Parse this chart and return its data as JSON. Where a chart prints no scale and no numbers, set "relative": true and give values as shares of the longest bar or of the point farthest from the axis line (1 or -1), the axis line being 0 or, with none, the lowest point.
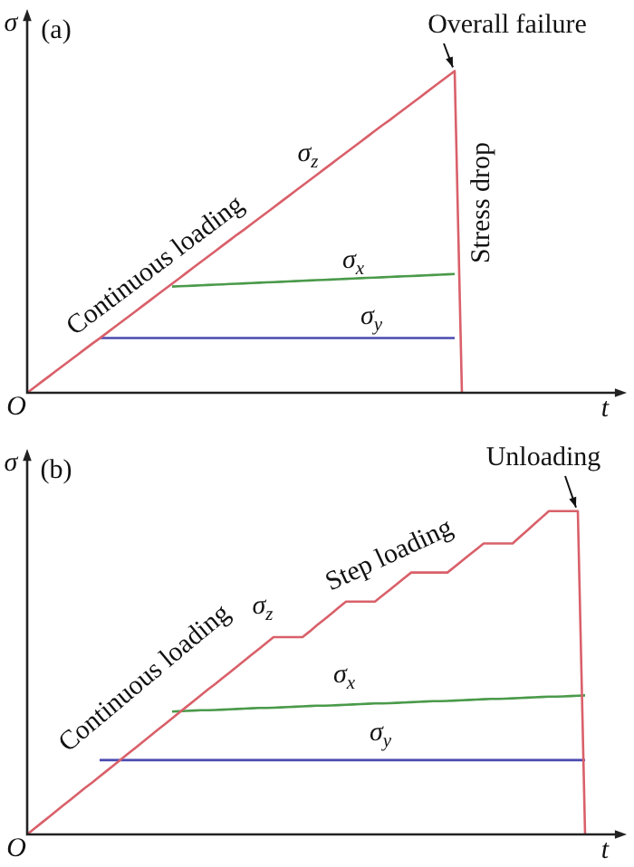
{
  "chart_data": [
    {
      "type": "line",
      "title": "(a)",
      "xlabel": "t",
      "ylabel": "σ",
      "relative": true,
      "legend": false,
      "marker": "none",
      "line_style": "solid",
      "categories": [
        null,
        null,
        null,
        null,
        null,
        null,
        null,
        null,
        null,
        null,
        null,
        null,
        null,
        null,
        null,
        null,
        null,
        null,
        null,
        null,
        null,
        null,
        null,
        null,
        null,
        null,
        null,
        null,
        null,
        null,
        null,
        null,
        null,
        null,
        null,
        null,
        null,
        null,
        null,
        null,
        null,
        null,
        null,
        null,
        null,
        null,
        null,
        null,
        null,
        null,
        null,
        null,
        null,
        null,
        null,
        null,
        null,
        null,
        null,
        null,
        null,
        null,
        null,
        null,
        null,
        null,
        null,
        null,
        null,
        null,
        null,
        null,
        null,
        null,
        null,
        null,
        null,
        null,
        null,
        null,
        null,
        null,
        null
      ],
      "annotations": [
        "O",
        "Continuous loading",
        "Overall failure",
        "Stress drop"
      ],
      "series": [
        {
          "name": "σ$_{z}$",
          "color": "#d9606a",
          "values": [
            0,
            0.017,
            0.034,
            0.051,
            0.068,
            0.085,
            0.102,
            0.119,
            0.136,
            0.153,
            0.169,
            0.186,
            0.203,
            0.22,
            0.237,
            0.254,
            0.271,
            0.288,
            0.305,
            0.322,
            0.339,
            0.356,
            0.373,
            0.39,
            0.407,
            0.424,
            0.441,
            0.458,
            0.475,
            0.492,
            0.508,
            0.525,
            0.542,
            0.559,
            0.576,
            0.593,
            0.61,
            0.627,
            0.644,
            0.661,
            0.678,
            0.695,
            0.712,
            0.729,
            0.746,
            0.763,
            0.78,
            0.797,
            0.814,
            0.831,
            0.847,
            0.864,
            0.881,
            0.898,
            0.915,
            0.932,
            0.949,
            0.966,
            0.983,
            1,
            0,
            null,
            null,
            null,
            null,
            null,
            null,
            null,
            null,
            null,
            null,
            null,
            null,
            null,
            null,
            null,
            null,
            null,
            null,
            null,
            null,
            null,
            null
          ]
        },
        {
          "name": "σ$_{x}$",
          "color": "#4a9a4a",
          "values": [
            null,
            null,
            null,
            null,
            null,
            null,
            null,
            null,
            null,
            null,
            null,
            null,
            null,
            null,
            null,
            null,
            null,
            null,
            null,
            null,
            0.33,
            0.331,
            0.332,
            0.333,
            0.334,
            0.335,
            0.336,
            0.337,
            0.338,
            0.339,
            0.34,
            0.341,
            0.342,
            0.343,
            0.344,
            0.345,
            0.346,
            0.347,
            0.348,
            0.349,
            0.35,
            0.351,
            0.352,
            0.353,
            0.354,
            0.355,
            0.356,
            0.357,
            0.358,
            0.359,
            0.36,
            0.361,
            0.362,
            0.363,
            0.364,
            0.365,
            0.366,
            0.367,
            0.368,
            0.369,
            null,
            null,
            null,
            null,
            null,
            null,
            null,
            null,
            null,
            null,
            null,
            null,
            null,
            null,
            null,
            null,
            null,
            null,
            null,
            null,
            null,
            null,
            null
          ]
        },
        {
          "name": "σ$_{y}$",
          "color": "#4a4ab0",
          "values": [
            null,
            null,
            null,
            null,
            null,
            null,
            null,
            null,
            null,
            null,
            0.17,
            0.17,
            0.17,
            0.17,
            0.17,
            0.17,
            0.17,
            0.17,
            0.17,
            0.17,
            0.17,
            0.17,
            0.17,
            0.17,
            0.17,
            0.17,
            0.17,
            0.17,
            0.17,
            0.17,
            0.17,
            0.17,
            0.17,
            0.17,
            0.17,
            0.17,
            0.17,
            0.17,
            0.17,
            0.17,
            0.17,
            0.17,
            0.17,
            0.17,
            0.17,
            0.17,
            0.17,
            0.17,
            0.17,
            0.17,
            0.17,
            0.17,
            0.17,
            0.17,
            0.17,
            0.17,
            0.17,
            0.17,
            0.17,
            0.17,
            null,
            null,
            null,
            null,
            null,
            null,
            null,
            null,
            null,
            null,
            null,
            null,
            null,
            null,
            null,
            null,
            null,
            null,
            null,
            null,
            null,
            null,
            null
          ]
        }
      ]
    },
    {
      "type": "line",
      "title": "(b)",
      "xlabel": "t",
      "ylabel": "σ",
      "relative": true,
      "legend": false,
      "marker": "none",
      "line_style": "solid",
      "categories": [
        null,
        null,
        null,
        null,
        null,
        null,
        null,
        null,
        null,
        null,
        null,
        null,
        null,
        null,
        null,
        null,
        null,
        null,
        null,
        null,
        null,
        null,
        null,
        null,
        null,
        null,
        null,
        null,
        null,
        null,
        null,
        null,
        null,
        null,
        null,
        null,
        null,
        null,
        null,
        null,
        null,
        null,
        null,
        null,
        null,
        null,
        null,
        null,
        null,
        null,
        null,
        null,
        null,
        null,
        null,
        null,
        null,
        null,
        null,
        null,
        null,
        null,
        null,
        null,
        null,
        null,
        null,
        null,
        null,
        null,
        null,
        null,
        null,
        null,
        null,
        null,
        null,
        null,
        null,
        null,
        null,
        null,
        null
      ],
      "annotations": [
        "O",
        "Continuous loading",
        "Step loading",
        "Unloading"
      ],
      "series": [
        {
          "name": "σ$_{z}$",
          "color": "#d9606a",
          "values": [
            0,
            0.018,
            0.036,
            0.054,
            0.072,
            0.09,
            0.108,
            0.126,
            0.144,
            0.161,
            0.179,
            0.197,
            0.215,
            0.233,
            0.251,
            0.269,
            0.287,
            0.305,
            0.323,
            0.341,
            0.359,
            0.377,
            0.395,
            0.413,
            0.431,
            0.449,
            0.466,
            0.484,
            0.502,
            0.52,
            0.538,
            0.556,
            0.574,
            0.592,
            0.61,
            0.61,
            0.61,
            0.61,
            0.61,
            0.628,
            0.647,
            0.665,
            0.683,
            0.702,
            0.72,
            0.72,
            0.72,
            0.72,
            0.72,
            0.738,
            0.756,
            0.774,
            0.792,
            0.81,
            0.81,
            0.81,
            0.81,
            0.81,
            0.81,
            0.828,
            0.846,
            0.864,
            0.882,
            0.9,
            0.9,
            0.9,
            0.9,
            0.9,
            0.92,
            0.94,
            0.96,
            0.98,
            1,
            1,
            1,
            1,
            1,
            0,
            null,
            null,
            null,
            null,
            null
          ]
        },
        {
          "name": "σ$_{x}$",
          "color": "#4a9a4a",
          "values": [
            null,
            null,
            null,
            null,
            null,
            null,
            null,
            null,
            null,
            null,
            null,
            null,
            null,
            null,
            null,
            null,
            null,
            null,
            null,
            null,
            0.38,
            0.381,
            0.382,
            0.383,
            0.384,
            0.384,
            0.385,
            0.386,
            0.387,
            0.388,
            0.389,
            0.39,
            0.391,
            0.391,
            0.392,
            0.393,
            0.394,
            0.395,
            0.396,
            0.397,
            0.398,
            0.398,
            0.399,
            0.4,
            0.401,
            0.402,
            0.403,
            0.404,
            0.405,
            0.405,
            0.406,
            0.407,
            0.408,
            0.409,
            0.41,
            0.411,
            0.412,
            0.412,
            0.413,
            0.414,
            0.415,
            0.416,
            0.417,
            0.418,
            0.419,
            0.419,
            0.42,
            0.421,
            0.422,
            0.423,
            0.424,
            0.425,
            0.426,
            0.426,
            0.427,
            0.428,
            0.429,
            0.43,
            null,
            null,
            null,
            null,
            null
          ]
        },
        {
          "name": "σ$_{y}$",
          "color": "#4a4ab0",
          "values": [
            null,
            null,
            null,
            null,
            null,
            null,
            null,
            null,
            null,
            null,
            0.23,
            0.23,
            0.23,
            0.23,
            0.23,
            0.23,
            0.23,
            0.23,
            0.23,
            0.23,
            0.23,
            0.23,
            0.23,
            0.23,
            0.23,
            0.23,
            0.23,
            0.23,
            0.23,
            0.23,
            0.23,
            0.23,
            0.23,
            0.23,
            0.23,
            0.23,
            0.23,
            0.23,
            0.23,
            0.23,
            0.23,
            0.23,
            0.23,
            0.23,
            0.23,
            0.23,
            0.23,
            0.23,
            0.23,
            0.23,
            0.23,
            0.23,
            0.23,
            0.23,
            0.23,
            0.23,
            0.23,
            0.23,
            0.23,
            0.23,
            0.23,
            0.23,
            0.23,
            0.23,
            0.23,
            0.23,
            0.23,
            0.23,
            0.23,
            0.23,
            0.23,
            0.23,
            0.23,
            0.23,
            0.23,
            0.23,
            0.23,
            0.23,
            null,
            null,
            null,
            null,
            null
          ]
        }
      ]
    }
  ]
}
